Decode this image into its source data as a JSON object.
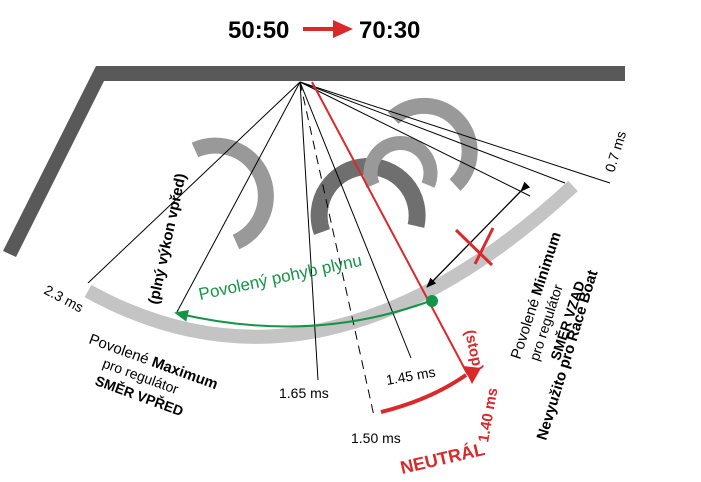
{
  "title": {
    "left": "50:50",
    "right": "70:30"
  },
  "pulse_labels": {
    "p_2_3": "2.3 ms",
    "p_1_65": "1.65 ms",
    "p_1_50": "1.50 ms",
    "p_1_45": "1.45 ms",
    "p_1_40": "1.40 ms",
    "p_0_7": "0.7 ms"
  },
  "labels": {
    "full_forward": "(plný výkon vpřed)",
    "allowed_motion": "Povolený pohyb plynu",
    "stop": "(stop)",
    "neutral": "NEUTRÁL",
    "max_line1_a": "Povolené ",
    "max_line1_b": "Maximum",
    "max_line2": "pro regulátor",
    "max_line3": "SMĚR VPŘED",
    "min_line1_a": "Povolené ",
    "min_line1_b": "Minimum",
    "min_line2": "pro regulátor",
    "min_line3": "SMĚR VZAD",
    "race_boat": "Nevyužito pro Race Boat"
  },
  "colors": {
    "dark_gray": "#595959",
    "light_gray": "#bfbfbf",
    "mid_gray": "#999999",
    "red": "#d9292b",
    "green": "#159447",
    "black": "#000000"
  }
}
